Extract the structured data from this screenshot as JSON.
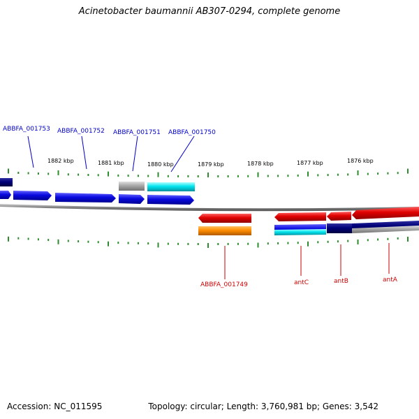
{
  "title": "Acinetobacter baumannii AB307-0294, complete genome",
  "footer": {
    "accession": "Accession: NC_011595",
    "stats": "Topology: circular; Length: 3,760,981 bp; Genes: 3,542"
  },
  "ruler_labels": [
    "1882 kbp",
    "1881 kbp",
    "1880 kbp",
    "1879 kbp",
    "1878 kbp",
    "1877 kbp",
    "1876 kbp"
  ],
  "gene_labels_top": [
    "ABBFA_001753",
    "ABBFA_001752",
    "ABBFA_001751",
    "ABBFA_001750"
  ],
  "gene_labels_bottom": [
    "ABBFA_001749",
    "antC",
    "antB",
    "antA"
  ],
  "colors": {
    "top_label": "#0000cc",
    "bottom_label": "#cc0000",
    "tick": "#2e8b2e",
    "backbone": "#888888",
    "blue_gene": "#0a0ae0",
    "red_gene": "#e00000",
    "orange_gene": "#ff8c00",
    "cyan_gene": "#00e5ee",
    "navy_gene": "#00007a",
    "grey_gene": "#a8a8a8"
  }
}
